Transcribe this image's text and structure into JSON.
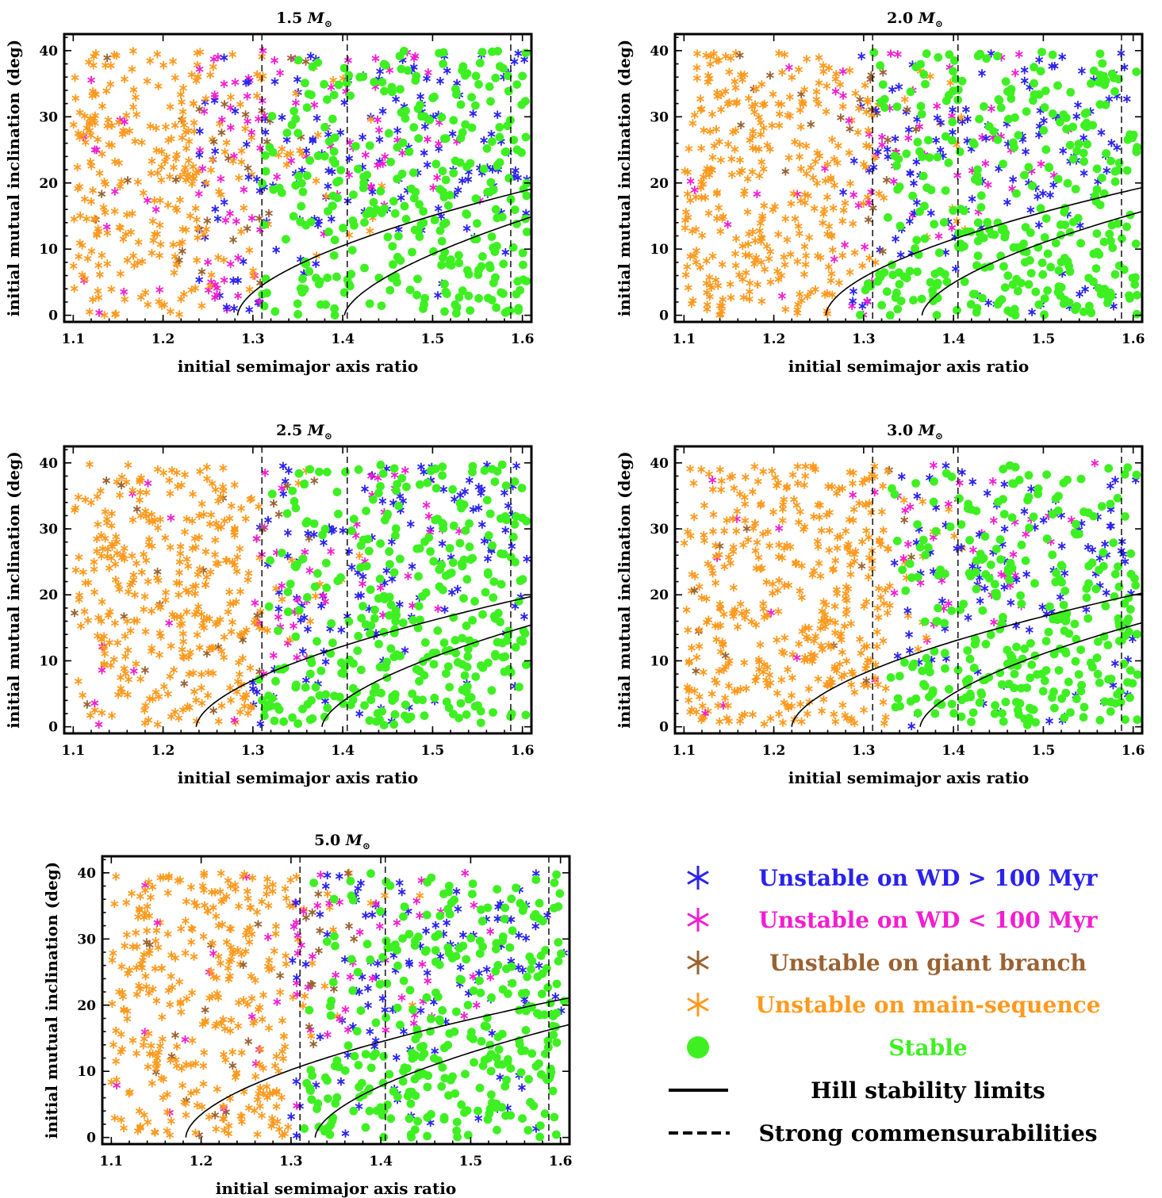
{
  "colors": {
    "wd_gt100": "#2b22ee",
    "wd_lt100": "#f21ed0",
    "giant": "#9a6231",
    "main_seq": "#ff9a1e",
    "stable": "#3ef022"
  },
  "legend": {
    "items": [
      {
        "key": "wd_gt100",
        "label": "Unstable on WD > 100 Myr",
        "marker": "star"
      },
      {
        "key": "wd_lt100",
        "label": "Unstable on WD < 100 Myr",
        "marker": "star"
      },
      {
        "key": "giant",
        "label": "Unstable on giant branch",
        "marker": "star"
      },
      {
        "key": "main_seq",
        "label": "Unstable on main-sequence",
        "marker": "star"
      },
      {
        "key": "stable",
        "label": "Stable",
        "marker": "circle"
      },
      {
        "key": "hill",
        "label": "Hill stability limits",
        "marker": "solid-line"
      },
      {
        "key": "commens",
        "label": "Strong commensurabilities",
        "marker": "dashed-line"
      }
    ]
  },
  "chart_data": [
    {
      "type": "scatter",
      "title": "1.5",
      "title_unit": "M",
      "title_unit_sub": "⊙",
      "xlabel": "initial semimajor axis ratio",
      "ylabel": "initial mutual inclination (deg)",
      "xlim": [
        1.09,
        1.61
      ],
      "ylim": [
        -1,
        42.5
      ],
      "xticks": [
        1.1,
        1.2,
        1.3,
        1.4,
        1.5,
        1.6
      ],
      "yticks": [
        0,
        10,
        20,
        30,
        40
      ],
      "commensurabilities": [
        1.31,
        1.405,
        1.587
      ],
      "hill_limits": [
        {
          "a0": 1.283,
          "k": 36.5,
          "p": 0.58
        },
        {
          "a0": 1.402,
          "k": 40.0,
          "p": 0.63
        }
      ],
      "seed": 11
    },
    {
      "type": "scatter",
      "title": "2.0",
      "title_unit": "M",
      "title_unit_sub": "⊙",
      "xlabel": "initial semimajor axis ratio",
      "ylabel": "initial mutual inclination (deg)",
      "xlim": [
        1.09,
        1.61
      ],
      "ylim": [
        -1,
        42.5
      ],
      "xticks": [
        1.1,
        1.2,
        1.3,
        1.4,
        1.5,
        1.6
      ],
      "yticks": [
        0,
        10,
        20,
        30,
        40
      ],
      "commensurabilities": [
        1.31,
        1.405,
        1.587
      ],
      "hill_limits": [
        {
          "a0": 1.258,
          "k": 35.0,
          "p": 0.57
        },
        {
          "a0": 1.365,
          "k": 36.5,
          "p": 0.6
        }
      ],
      "seed": 23
    },
    {
      "type": "scatter",
      "title": "2.5",
      "title_unit": "M",
      "title_unit_sub": "⊙",
      "xlabel": "initial semimajor axis ratio",
      "ylabel": "initial mutual inclination (deg)",
      "xlim": [
        1.09,
        1.61
      ],
      "ylim": [
        -1,
        42.5
      ],
      "xticks": [
        1.1,
        1.2,
        1.3,
        1.4,
        1.5,
        1.6
      ],
      "yticks": [
        0,
        10,
        20,
        30,
        40
      ],
      "commensurabilities": [
        1.31,
        1.405,
        1.587
      ],
      "hill_limits": [
        {
          "a0": 1.237,
          "k": 35.0,
          "p": 0.58
        },
        {
          "a0": 1.377,
          "k": 37.0,
          "p": 0.6
        }
      ],
      "seed": 37
    },
    {
      "type": "scatter",
      "title": "3.0",
      "title_unit": "M",
      "title_unit_sub": "⊙",
      "xlabel": "initial semimajor axis ratio",
      "ylabel": "initial mutual inclination (deg)",
      "xlim": [
        1.09,
        1.61
      ],
      "ylim": [
        -1,
        42.5
      ],
      "xticks": [
        1.1,
        1.2,
        1.3,
        1.4,
        1.5,
        1.6
      ],
      "yticks": [
        0,
        10,
        20,
        30,
        40
      ],
      "commensurabilities": [
        1.31,
        1.405,
        1.587
      ],
      "hill_limits": [
        {
          "a0": 1.22,
          "k": 35.0,
          "p": 0.58
        },
        {
          "a0": 1.363,
          "k": 36.5,
          "p": 0.6
        }
      ],
      "seed": 53
    },
    {
      "type": "scatter",
      "title": "5.0",
      "title_unit": "M",
      "title_unit_sub": "⊙",
      "xlabel": "initial semimajor axis ratio",
      "ylabel": "initial mutual inclination (deg)",
      "xlim": [
        1.09,
        1.61
      ],
      "ylim": [
        -1,
        42.5
      ],
      "xticks": [
        1.1,
        1.2,
        1.3,
        1.4,
        1.5,
        1.6
      ],
      "yticks": [
        0,
        10,
        20,
        30,
        40
      ],
      "commensurabilities": [
        1.31,
        1.405,
        1.587
      ],
      "hill_limits": [
        {
          "a0": 1.183,
          "k": 34.0,
          "p": 0.56
        },
        {
          "a0": 1.327,
          "k": 35.5,
          "p": 0.58
        }
      ],
      "seed": 71
    }
  ]
}
